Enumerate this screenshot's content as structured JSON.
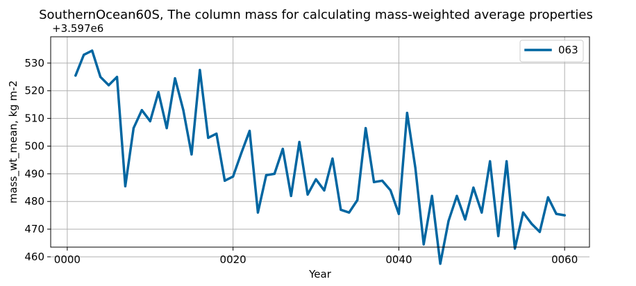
{
  "chart_data": {
    "type": "line",
    "title": "SouthernOcean60S, The column mass for calculating mass-weighted average properties",
    "xlabel": "Year",
    "ylabel": "mass_wt_mean, kg m-2",
    "y_offset_label": "+3.597e6",
    "xlim": [
      -2,
      63
    ],
    "ylim": [
      463.5,
      539.5
    ],
    "x_ticks": [
      0,
      20,
      40,
      60
    ],
    "x_tick_labels": [
      "0000",
      "0020",
      "0040",
      "0060"
    ],
    "y_ticks": [
      460,
      470,
      480,
      490,
      500,
      510,
      520,
      530
    ],
    "y_tick_labels": [
      "460",
      "470",
      "480",
      "490",
      "500",
      "510",
      "520",
      "530"
    ],
    "grid": true,
    "legend_position": "top-right",
    "series": [
      {
        "name": "063",
        "color": "#0066a1",
        "x": [
          1,
          2,
          3,
          4,
          5,
          6,
          7,
          8,
          9,
          10,
          11,
          12,
          13,
          14,
          15,
          16,
          17,
          18,
          19,
          20,
          21,
          22,
          23,
          24,
          25,
          26,
          27,
          28,
          29,
          30,
          31,
          32,
          33,
          34,
          35,
          36,
          37,
          38,
          39,
          40,
          41,
          42,
          43,
          44,
          45,
          46,
          47,
          48,
          49,
          50,
          51,
          52,
          53,
          54,
          55,
          56,
          57,
          58,
          59,
          60
        ],
        "values": [
          525.5,
          533.0,
          534.5,
          525.0,
          522.0,
          525.0,
          485.5,
          506.5,
          513.0,
          509.0,
          519.5,
          506.5,
          524.5,
          513.0,
          497.0,
          527.5,
          503.0,
          504.5,
          487.5,
          489.0,
          497.5,
          505.5,
          476.0,
          489.5,
          490.0,
          499.0,
          482.0,
          501.5,
          482.5,
          488.0,
          484.0,
          495.5,
          477.0,
          476.0,
          480.5,
          506.5,
          487.0,
          487.5,
          484.0,
          475.5,
          512.0,
          492.0,
          464.5,
          482.0,
          457.5,
          473.0,
          482.0,
          473.5,
          485.0,
          476.0,
          494.5,
          467.5,
          494.5,
          463.0,
          476.0,
          472.0,
          469.0,
          481.5,
          475.5,
          475.0
        ]
      }
    ]
  }
}
